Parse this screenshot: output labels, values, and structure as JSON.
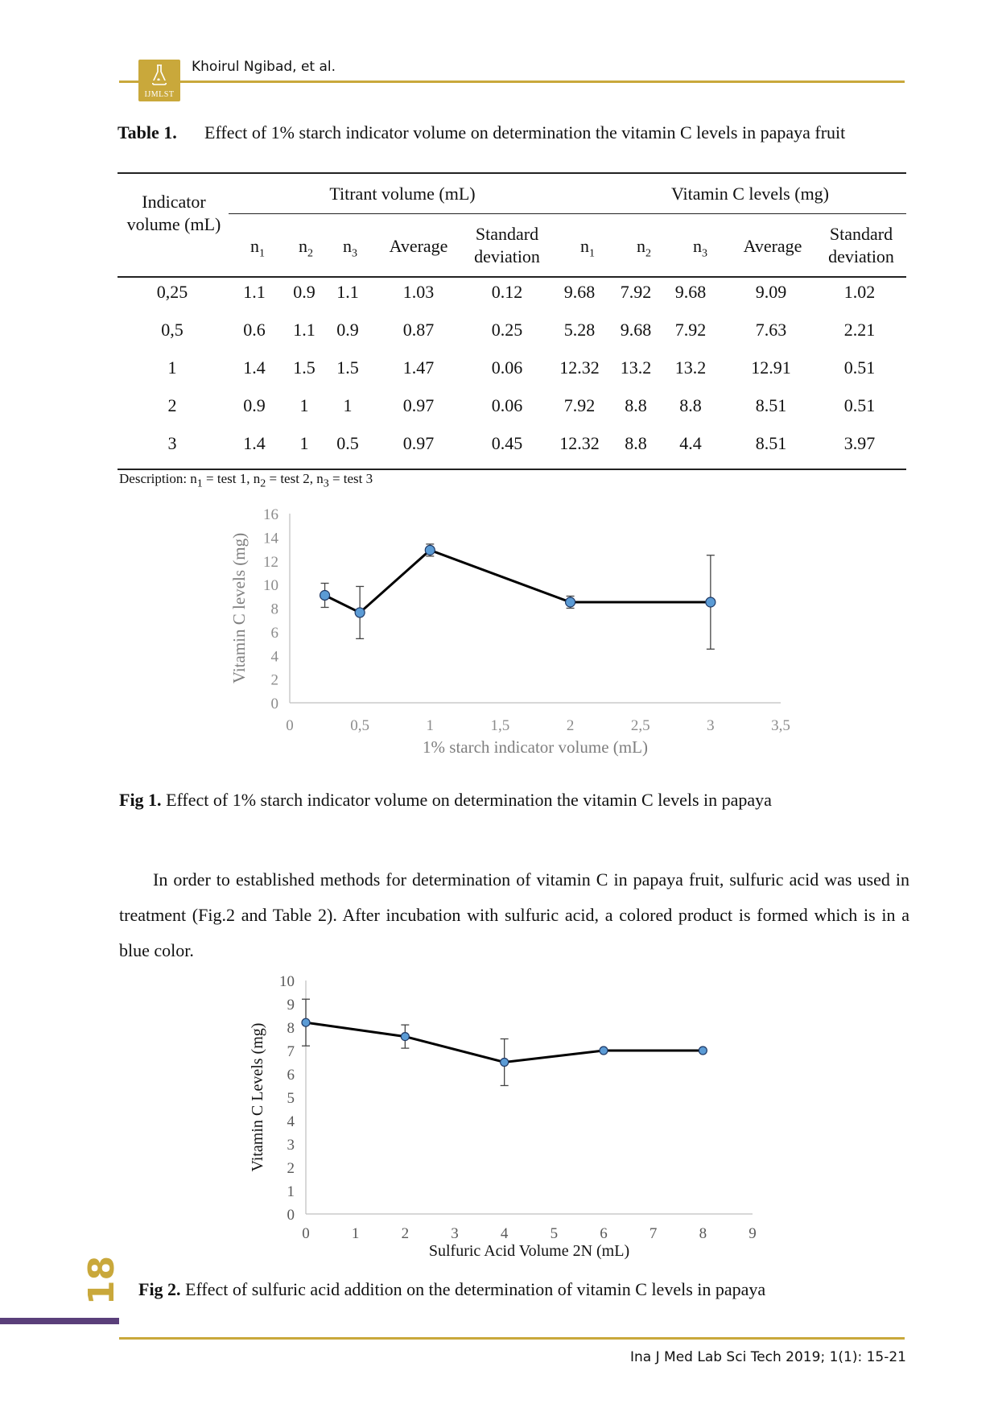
{
  "header": {
    "author": "Khoirul Ngibad, et al.",
    "logo_text": "IJMLST"
  },
  "table1": {
    "label": "Table 1.",
    "caption": "Effect of 1% starch indicator volume on determination the vitamin C levels in papaya fruit",
    "col_indicator": "Indicator volume (mL)",
    "group_titrant": "Titrant volume (mL)",
    "group_vitc": "Vitamin C levels (mg)",
    "sub_n1": "n",
    "sub_average": "Average",
    "sub_sd": "Standard deviation",
    "rows": [
      [
        "0,25",
        "1.1",
        "0.9",
        "1.1",
        "1.03",
        "0.12",
        "9.68",
        "7.92",
        "9.68",
        "9.09",
        "1.02"
      ],
      [
        "0,5",
        "0.6",
        "1.1",
        "0.9",
        "0.87",
        "0.25",
        "5.28",
        "9.68",
        "7.92",
        "7.63",
        "2.21"
      ],
      [
        "1",
        "1.4",
        "1.5",
        "1.5",
        "1.47",
        "0.06",
        "12.32",
        "13.2",
        "13.2",
        "12.91",
        "0.51"
      ],
      [
        "2",
        "0.9",
        "1",
        "1",
        "0.97",
        "0.06",
        "7.92",
        "8.8",
        "8.8",
        "8.51",
        "0.51"
      ],
      [
        "3",
        "1.4",
        "1",
        "0.5",
        "0.97",
        "0.45",
        "12.32",
        "8.8",
        "4.4",
        "8.51",
        "3.97"
      ]
    ],
    "description": "Description: n1 = test 1, n2 = test 2, n3 = test 3"
  },
  "chart_data": [
    {
      "type": "line",
      "xlabel": "1% starch indicator volume (mL)",
      "ylabel": "Vitamin C levels (mg)",
      "xlim": [
        0,
        3.5
      ],
      "ylim": [
        0,
        16
      ],
      "x_ticks": [
        "0",
        "0,5",
        "1",
        "1,5",
        "2",
        "2,5",
        "3",
        "3,5"
      ],
      "y_ticks": [
        "0",
        "2",
        "4",
        "6",
        "8",
        "10",
        "12",
        "14",
        "16"
      ],
      "x": [
        0.25,
        0.5,
        1,
        2,
        3
      ],
      "y": [
        9.09,
        7.63,
        12.91,
        8.51,
        8.51
      ],
      "error": [
        1.02,
        2.21,
        0.51,
        0.51,
        3.97
      ],
      "marker_color": "#5b9bd5",
      "line_color": "#000000"
    },
    {
      "type": "line",
      "xlabel": "Sulfuric Acid Volume 2N (mL)",
      "ylabel": "Vitamin C Levels (mg)",
      "xlim": [
        0,
        9
      ],
      "ylim": [
        0,
        10
      ],
      "x_ticks": [
        "0",
        "1",
        "2",
        "3",
        "4",
        "5",
        "6",
        "7",
        "8",
        "9"
      ],
      "y_ticks": [
        "0",
        "1",
        "2",
        "3",
        "4",
        "5",
        "6",
        "7",
        "8",
        "9",
        "10"
      ],
      "x": [
        0,
        2,
        4,
        6,
        8
      ],
      "y": [
        8.2,
        7.6,
        6.5,
        7.0,
        7.0
      ],
      "error": [
        1.0,
        0.5,
        1.0,
        0,
        0
      ],
      "marker_color": "#5b9bd5",
      "line_color": "#000000"
    }
  ],
  "fig1": {
    "label": "Fig 1.",
    "caption": "Effect of 1% starch indicator volume on determination the vitamin C levels in papaya"
  },
  "paragraph": "In order to established methods for determination of vitamin C in papaya fruit, sulfuric acid was used in treatment (Fig.2 and Table 2). After incubation with sulfuric acid, a colored product is formed which is in a blue color.",
  "fig2": {
    "label": "Fig 2.",
    "caption": "Effect of sulfuric acid addition on the determination of vitamin C levels in papaya"
  },
  "footer": {
    "page_number": "18",
    "journal": "Ina J Med Lab Sci Tech 2019; 1(1): 15-21"
  }
}
